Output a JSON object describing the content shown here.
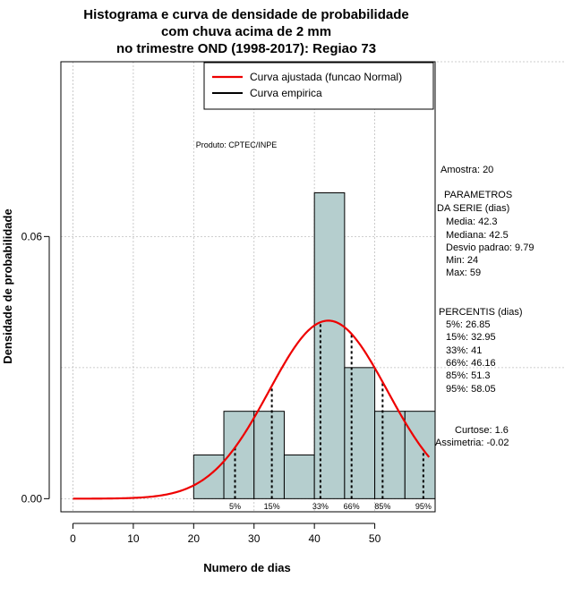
{
  "chart_data": {
    "type": "histogram",
    "title_lines": [
      "Histograma e curva de densidade de probabilidade",
      "com chuva acima de 2 mm",
      "no trimestre OND (1998-2017): Regiao 73"
    ],
    "xlabel": "Numero de dias",
    "ylabel": "Densidade de probabilidade",
    "xlim": [
      -2,
      60
    ],
    "ylim": [
      -0.003,
      0.1
    ],
    "xticks": [
      0,
      10,
      20,
      30,
      40,
      50
    ],
    "yticks": [
      0.0,
      0.06
    ],
    "ytick_labels": [
      "0.00",
      "0.06"
    ],
    "grid_x": [
      0,
      10,
      20,
      30,
      40,
      50
    ],
    "grid_y": [
      0.0,
      0.06
    ],
    "hist_bins": [
      {
        "x0": 20,
        "x1": 25,
        "density": 0.01
      },
      {
        "x0": 25,
        "x1": 30,
        "density": 0.02
      },
      {
        "x0": 30,
        "x1": 35,
        "density": 0.02
      },
      {
        "x0": 35,
        "x1": 40,
        "density": 0.01
      },
      {
        "x0": 40,
        "x1": 45,
        "density": 0.07
      },
      {
        "x0": 45,
        "x1": 50,
        "density": 0.03
      },
      {
        "x0": 50,
        "x1": 55,
        "density": 0.02
      },
      {
        "x0": 55,
        "x1": 60,
        "density": 0.02
      }
    ],
    "hist_color": "#b5cece",
    "normal_fit": {
      "mean": 42.3,
      "sd": 9.79,
      "x_from": 0,
      "x_to": 59,
      "color": "#ee0000"
    },
    "percentile_markers": [
      {
        "label": "5%",
        "x": 26.85
      },
      {
        "label": "15%",
        "x": 32.95
      },
      {
        "label": "33%",
        "x": 41
      },
      {
        "label": "66%",
        "x": 46.16
      },
      {
        "label": "85%",
        "x": 51.3
      },
      {
        "label": "95%",
        "x": 58.05
      }
    ],
    "legend": {
      "position": "top-right",
      "entries": [
        {
          "label": "Curva ajustada (funcao Normal)",
          "color": "#ee0000"
        },
        {
          "label": "Curva empirica",
          "color": "#000000"
        }
      ]
    },
    "annotation_product": "Produto: CPTEC/INPE"
  },
  "side_panel": {
    "amostra": "Amostra: 20",
    "params_title_1": "PARAMETROS",
    "params_title_2": "DA SERIE (dias)",
    "params": [
      "Media: 42.3",
      "Mediana: 42.5",
      "Desvio padrao: 9.79",
      "Min: 24",
      "Max: 59"
    ],
    "percentis_title": "PERCENTIS (dias)",
    "percentis": [
      "5%: 26.85",
      "15%: 32.95",
      "33%: 41",
      "66%: 46.16",
      "85%: 51.3",
      "95%: 58.05"
    ],
    "curtose": "Curtose: 1.6",
    "assimetria": "Assimetria: -0.02"
  }
}
